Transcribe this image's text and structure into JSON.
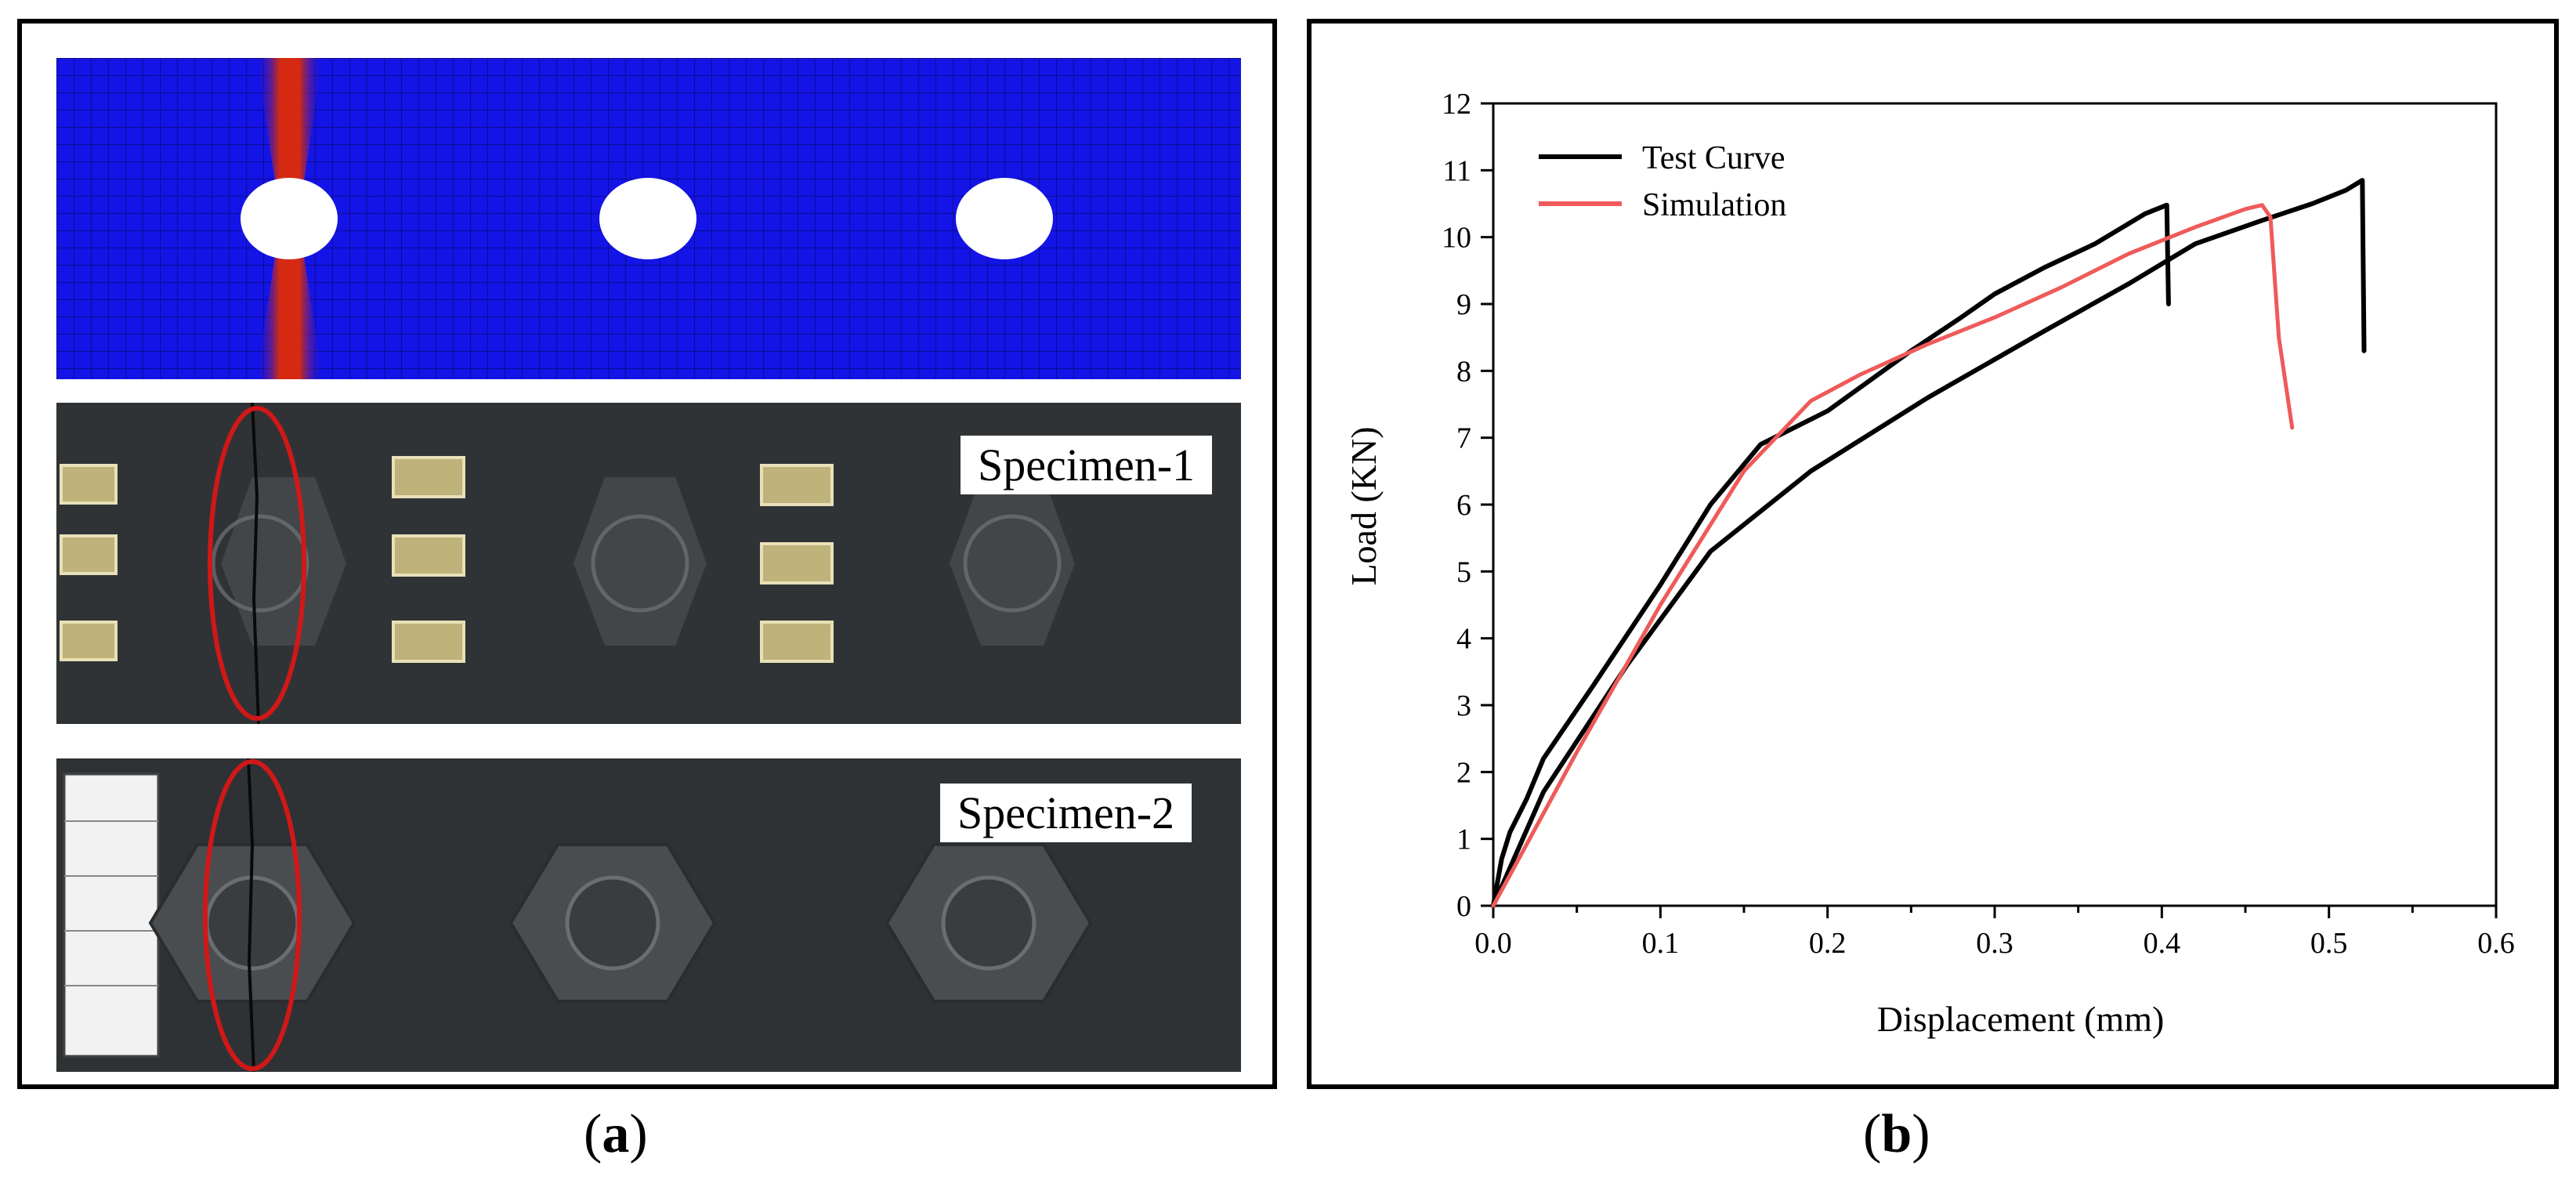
{
  "panel_a": {
    "caption_open": "(",
    "caption_letter": "a",
    "caption_close": ")",
    "specimen_1_label": "Specimen-1",
    "specimen_2_label": "Specimen-2",
    "colors": {
      "mesh": "#1414e6",
      "stress": "#d42a12",
      "crack_marker": "#d01818",
      "specimen": "#2b2e30"
    }
  },
  "panel_b": {
    "caption_open": "(",
    "caption_letter": "b",
    "caption_close": ")"
  },
  "chart_data": {
    "type": "line",
    "title": "",
    "xlabel": "Displacement (mm)",
    "ylabel": "Load (KN)",
    "xlim": [
      0,
      0.6
    ],
    "ylim": [
      0,
      12
    ],
    "x_ticks": [
      "0.0",
      "0.1",
      "0.2",
      "0.3",
      "0.4",
      "0.5",
      "0.6"
    ],
    "y_ticks": [
      "0",
      "1",
      "2",
      "3",
      "4",
      "5",
      "6",
      "7",
      "8",
      "9",
      "10",
      "11",
      "12"
    ],
    "grid": false,
    "legend_position": "top-left",
    "series": [
      {
        "name": "Test Curve",
        "color": "#000000",
        "x": [
          0.0,
          0.005,
          0.01,
          0.02,
          0.03,
          0.06,
          0.1,
          0.13,
          0.16,
          0.2,
          0.25,
          0.28,
          0.3,
          0.33,
          0.36,
          0.39,
          0.403,
          0.404
        ],
        "y": [
          0.0,
          0.7,
          1.1,
          1.6,
          2.2,
          3.3,
          4.8,
          6.0,
          6.9,
          7.4,
          8.3,
          8.8,
          9.15,
          9.55,
          9.9,
          10.35,
          10.48,
          9.0
        ]
      },
      {
        "name": "Test Curve",
        "color": "#000000",
        "x": [
          0.0,
          0.03,
          0.08,
          0.13,
          0.19,
          0.26,
          0.33,
          0.38,
          0.42,
          0.46,
          0.49,
          0.51,
          0.52,
          0.521
        ],
        "y": [
          0.0,
          1.7,
          3.6,
          5.3,
          6.5,
          7.6,
          8.6,
          9.3,
          9.9,
          10.25,
          10.5,
          10.7,
          10.85,
          8.3
        ]
      },
      {
        "name": "Simulation",
        "color": "#ef5a5a",
        "x": [
          0.0,
          0.05,
          0.1,
          0.15,
          0.19,
          0.22,
          0.26,
          0.3,
          0.34,
          0.38,
          0.42,
          0.45,
          0.46,
          0.465,
          0.47,
          0.478
        ],
        "y": [
          0.0,
          2.3,
          4.5,
          6.5,
          7.55,
          7.95,
          8.4,
          8.8,
          9.25,
          9.75,
          10.15,
          10.42,
          10.48,
          10.3,
          8.5,
          7.15
        ]
      }
    ]
  }
}
